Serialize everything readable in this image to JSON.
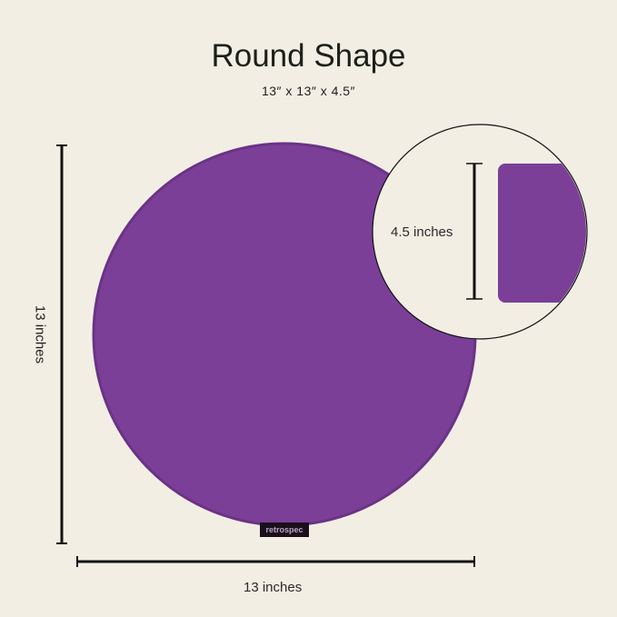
{
  "title": "Round Shape",
  "subtitle": "13″ x 13″ x 4.5″",
  "labels": {
    "height": "4.5 inches",
    "width": "13 inches",
    "length": "13 inches"
  },
  "brand": "retrospec",
  "colors": {
    "background": "#f3eee4",
    "cushion": "#7b3f98",
    "ink": "#1b2019"
  }
}
